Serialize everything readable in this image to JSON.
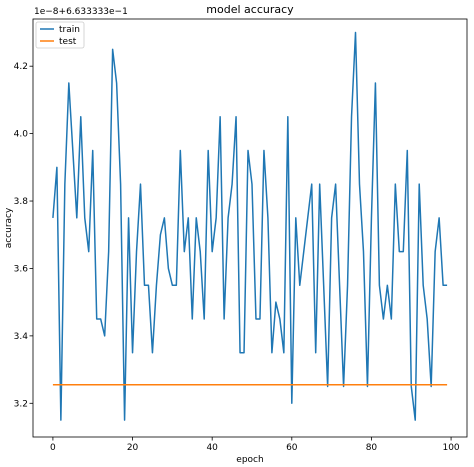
{
  "chart_data": {
    "type": "line",
    "title": "model accuracy",
    "xlabel": "epoch",
    "ylabel": "accuracy",
    "offset_text": "1e−8+6.633333e−1",
    "xlim": [
      -5,
      104
    ],
    "ylim": [
      3.1,
      4.34
    ],
    "x_ticks": [
      0,
      20,
      40,
      60,
      80,
      100
    ],
    "x_tick_labels": [
      "0",
      "20",
      "40",
      "60",
      "80",
      "100"
    ],
    "y_ticks": [
      3.2,
      3.4,
      3.6,
      3.8,
      4.0,
      4.2
    ],
    "y_tick_labels": [
      "3.2",
      "3.4",
      "3.6",
      "3.8",
      "4.0",
      "4.2"
    ],
    "legend_position": "top-left",
    "grid": false,
    "series": [
      {
        "name": "train",
        "color": "#1f77b4",
        "values": [
          3.75,
          3.9,
          3.15,
          3.85,
          4.15,
          3.95,
          3.75,
          4.05,
          3.75,
          3.65,
          3.95,
          3.45,
          3.45,
          3.4,
          3.65,
          4.25,
          4.15,
          3.85,
          3.15,
          3.75,
          3.35,
          3.65,
          3.85,
          3.55,
          3.55,
          3.35,
          3.55,
          3.7,
          3.75,
          3.6,
          3.55,
          3.55,
          3.95,
          3.65,
          3.75,
          3.45,
          3.75,
          3.65,
          3.45,
          3.95,
          3.65,
          3.75,
          4.05,
          3.45,
          3.75,
          3.85,
          4.05,
          3.35,
          3.35,
          3.95,
          3.85,
          3.45,
          3.45,
          3.95,
          3.75,
          3.35,
          3.5,
          3.45,
          3.35,
          4.05,
          3.2,
          3.75,
          3.55,
          3.65,
          3.75,
          3.85,
          3.35,
          3.85,
          3.55,
          3.25,
          3.75,
          3.85,
          3.55,
          3.25,
          3.55,
          4.05,
          4.3,
          3.85,
          3.65,
          3.25,
          3.75,
          4.15,
          3.55,
          3.45,
          3.55,
          3.45,
          3.85,
          3.65,
          3.65,
          3.95,
          3.25,
          3.15,
          3.85,
          3.55,
          3.45,
          3.25,
          3.65,
          3.75,
          3.55,
          3.55
        ]
      },
      {
        "name": "test",
        "color": "#ff7f0e",
        "values": [
          3.255,
          3.255,
          3.255,
          3.255,
          3.255,
          3.255,
          3.255,
          3.255,
          3.255,
          3.255,
          3.255,
          3.255,
          3.255,
          3.255,
          3.255,
          3.255,
          3.255,
          3.255,
          3.255,
          3.255,
          3.255,
          3.255,
          3.255,
          3.255,
          3.255,
          3.255,
          3.255,
          3.255,
          3.255,
          3.255,
          3.255,
          3.255,
          3.255,
          3.255,
          3.255,
          3.255,
          3.255,
          3.255,
          3.255,
          3.255,
          3.255,
          3.255,
          3.255,
          3.255,
          3.255,
          3.255,
          3.255,
          3.255,
          3.255,
          3.255,
          3.255,
          3.255,
          3.255,
          3.255,
          3.255,
          3.255,
          3.255,
          3.255,
          3.255,
          3.255,
          3.255,
          3.255,
          3.255,
          3.255,
          3.255,
          3.255,
          3.255,
          3.255,
          3.255,
          3.255,
          3.255,
          3.255,
          3.255,
          3.255,
          3.255,
          3.255,
          3.255,
          3.255,
          3.255,
          3.255,
          3.255,
          3.255,
          3.255,
          3.255,
          3.255,
          3.255,
          3.255,
          3.255,
          3.255,
          3.255,
          3.255,
          3.255,
          3.255,
          3.255,
          3.255,
          3.255,
          3.255,
          3.255,
          3.255,
          3.255
        ]
      }
    ]
  }
}
